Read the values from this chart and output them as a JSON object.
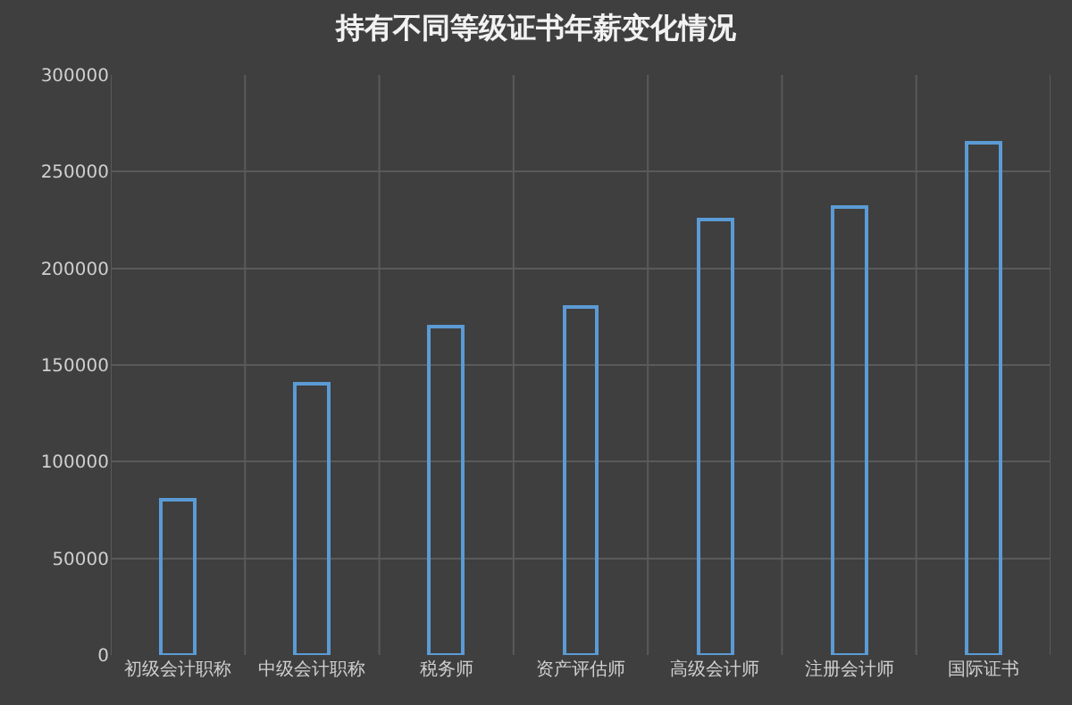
{
  "chart_data": {
    "type": "bar",
    "title": "持有不同等级证书年薪变化情况",
    "categories": [
      "初级会计职称",
      "中级会计职称",
      "税务师",
      "资产评估师",
      "高级会计师",
      "注册会计师",
      "国际证书"
    ],
    "values": [
      80000,
      140000,
      170000,
      180000,
      225000,
      232000,
      265000
    ],
    "color": "#5b9bd5",
    "ylim": [
      0,
      300000
    ],
    "yticks": [
      0,
      50000,
      100000,
      150000,
      200000,
      250000,
      300000
    ],
    "grid": true
  }
}
